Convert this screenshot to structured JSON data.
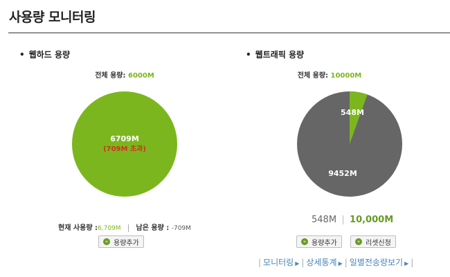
{
  "page": {
    "title": "사용량 모니터링"
  },
  "webhard": {
    "heading": "웹하드 용량",
    "total_label": "전체 용량:",
    "total_value": "6000M",
    "pie": {
      "main_label": "6709M",
      "sub_label": "(709M 초과)",
      "fill_color": "#7cb61e",
      "sub_color": "#d0331b"
    },
    "usage": {
      "used_label": "현재 사용량 :",
      "used_value": "6,709M",
      "remain_label": "남은 용량 :",
      "remain_value": "-709M"
    },
    "add_button": "용량추가"
  },
  "webtraffic": {
    "heading": "웹트래픽 용량",
    "total_label": "전체 용량:",
    "total_value": "10000M",
    "pie": {
      "used_label": "548M",
      "remain_label": "9452M",
      "used_fraction": 0.0548,
      "used_color": "#7cb61e",
      "remain_color": "#666666"
    },
    "usage_used": "548M",
    "usage_total": "10,000M",
    "add_button": "용량추가",
    "reset_button": "리셋신청",
    "links": [
      "모니터링",
      "상세통계",
      "일별전송량보기"
    ]
  }
}
